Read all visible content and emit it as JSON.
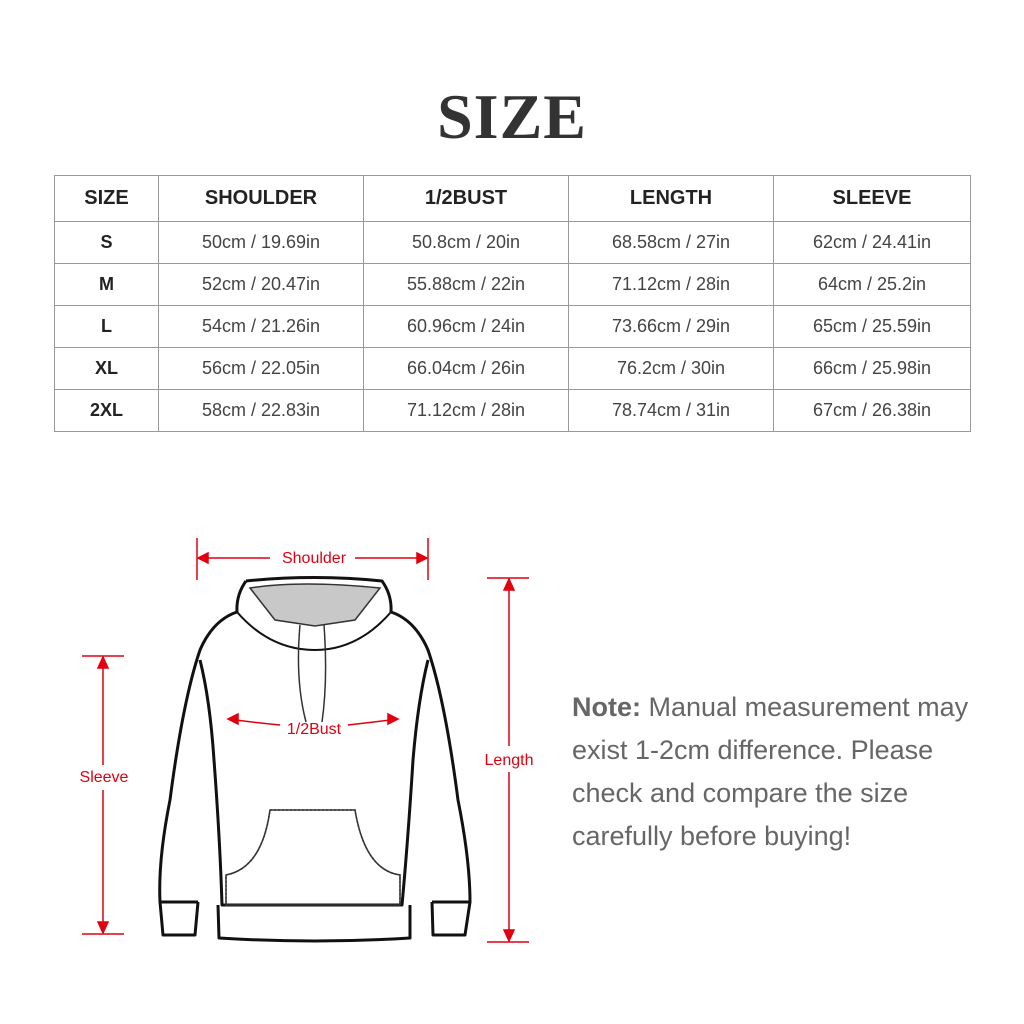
{
  "title": "SIZE",
  "table": {
    "headers": [
      "SIZE",
      "SHOULDER",
      "1/2BUST",
      "LENGTH",
      "SLEEVE"
    ],
    "rows": [
      [
        "S",
        "50cm / 19.69in",
        "50.8cm / 20in",
        "68.58cm / 27in",
        "62cm / 24.41in"
      ],
      [
        "M",
        "52cm / 20.47in",
        "55.88cm / 22in",
        "71.12cm / 28in",
        "64cm / 25.2in"
      ],
      [
        "L",
        "54cm / 21.26in",
        "60.96cm / 24in",
        "73.66cm / 29in",
        "65cm / 25.59in"
      ],
      [
        "XL",
        "56cm / 22.05in",
        "66.04cm / 26in",
        "76.2cm / 30in",
        "66cm / 25.98in"
      ],
      [
        "2XL",
        "58cm / 22.83in",
        "71.12cm / 28in",
        "78.74cm / 31in",
        "67cm / 26.38in"
      ]
    ]
  },
  "diagram": {
    "shoulder": "Shoulder",
    "bust": "1/2Bust",
    "sleeve": "Sleeve",
    "length": "Length",
    "accent": "#e00010"
  },
  "note": {
    "label": "Note:",
    "text": "Manual measurement may exist 1-2cm difference. Please check and compare the size carefully before buying!"
  }
}
